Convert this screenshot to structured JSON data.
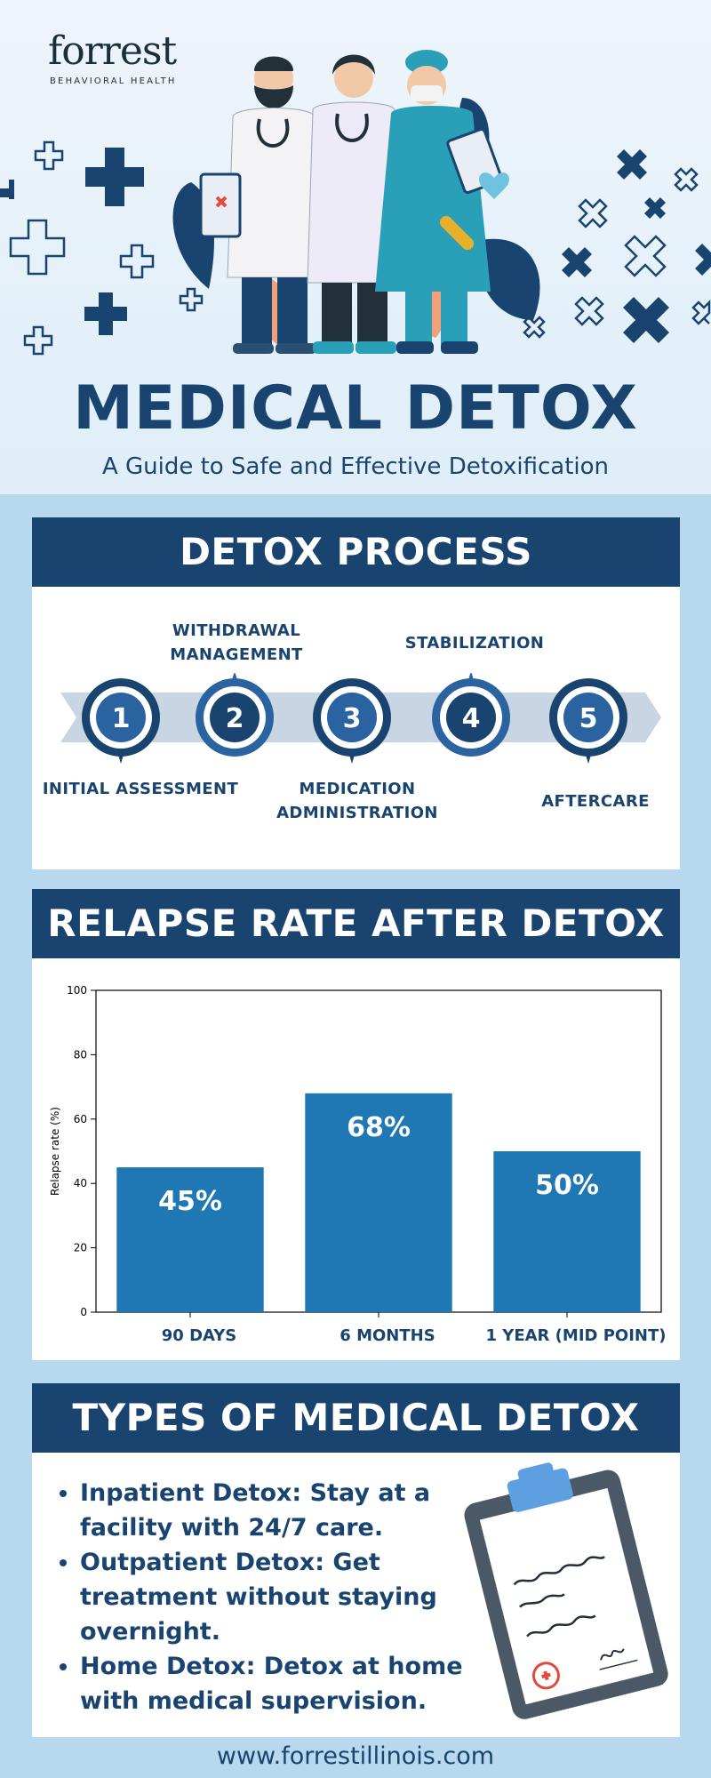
{
  "header": {
    "logo_name": "forrest",
    "logo_sub": "BEHAVIORAL HEALTH",
    "title": "MEDICAL DETOX",
    "subtitle": "A Guide to Safe and Effective Detoxification"
  },
  "process": {
    "heading": "DETOX PROCESS",
    "steps": [
      {
        "number": "1",
        "label": "INITIAL ASSESSMENT"
      },
      {
        "number": "2",
        "label": "WITHDRAWAL MANAGEMENT"
      },
      {
        "number": "3",
        "label": "MEDICATION ADMINISTRATION"
      },
      {
        "number": "4",
        "label": "STABILIZATION"
      },
      {
        "number": "5",
        "label": "AFTERCARE"
      }
    ]
  },
  "relapse": {
    "heading": "RELAPSE RATE AFTER DETOX"
  },
  "chart_data": {
    "type": "bar",
    "categories": [
      "90 DAYS",
      "6 MONTHS",
      "1 YEAR (MID POINT)"
    ],
    "values": [
      45,
      68,
      50
    ],
    "data_labels": [
      "45%",
      "68%",
      "50%"
    ],
    "ylabel": "Relapse rate (%)",
    "ylim": [
      0,
      100
    ],
    "yticks": [
      0,
      20,
      40,
      60,
      80,
      100
    ],
    "bar_color": "#1f77b4",
    "grid": false
  },
  "types": {
    "heading": "TYPES OF MEDICAL DETOX",
    "items": [
      "Inpatient Detox: Stay at a facility with 24/7 care.",
      "Outpatient Detox: Get treatment without staying overnight.",
      "Home Detox: Detox at home with medical supervision."
    ]
  },
  "footer": {
    "url": "www.forrestillinois.com"
  },
  "colors": {
    "navy": "#1a4470",
    "accent_blue": "#2a63a0",
    "light_band": "#c8d6e4",
    "page_bg": "#b8d8ed"
  }
}
